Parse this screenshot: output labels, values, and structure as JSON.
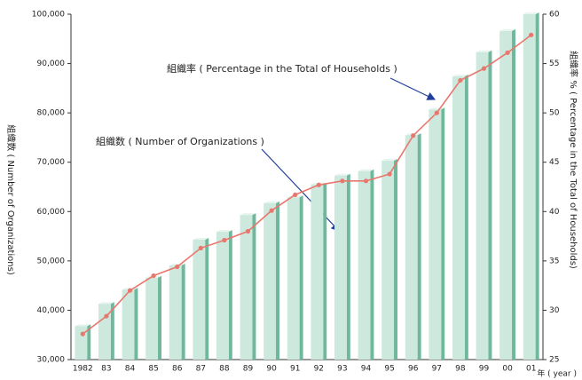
{
  "chart_data": {
    "type": "bar_line",
    "categories": [
      "1982",
      "83",
      "84",
      "85",
      "86",
      "87",
      "88",
      "89",
      "90",
      "91",
      "92",
      "93",
      "94",
      "95",
      "96",
      "97",
      "98",
      "99",
      "00",
      "01"
    ],
    "series": [
      {
        "name": "組織数 ( Number of Organizations )",
        "type": "bar",
        "color": "#cde9de",
        "side_color": "#6fb89b",
        "values": [
          36800,
          41300,
          44200,
          46600,
          49100,
          54300,
          55900,
          59300,
          61700,
          62900,
          65500,
          67300,
          68200,
          70300,
          75500,
          80700,
          87400,
          92300,
          96600,
          100000
        ]
      },
      {
        "name": "組織率 ( Percentage in the Total of Households )",
        "type": "line",
        "axis": "y2",
        "color": "#e8776e",
        "values": [
          27.6,
          29.4,
          32.0,
          33.5,
          34.4,
          36.3,
          37.1,
          38.0,
          40.1,
          41.7,
          42.7,
          43.1,
          43.1,
          43.8,
          47.7,
          50.0,
          53.3,
          54.5,
          56.1,
          57.9
        ]
      }
    ],
    "y_label": "組織数 ( Number of Organizations)",
    "y2_label": "組織率 % ( Percentage in the Total of Households)",
    "x_label": "年 ( year )",
    "ylim": [
      30000,
      100000
    ],
    "yticks": [
      {
        "value": 30000,
        "label": "30,000"
      },
      {
        "value": 40000,
        "label": "40,000"
      },
      {
        "value": 50000,
        "label": "50,000"
      },
      {
        "value": 60000,
        "label": "60,000"
      },
      {
        "value": 70000,
        "label": "70,000"
      },
      {
        "value": 80000,
        "label": "80,000"
      },
      {
        "value": 90000,
        "label": "90,000"
      },
      {
        "value": 100000,
        "label": "100,000"
      }
    ],
    "y2lim": [
      25,
      60
    ],
    "y2ticks": [
      25,
      30,
      35,
      40,
      45,
      50,
      55,
      60
    ]
  }
}
